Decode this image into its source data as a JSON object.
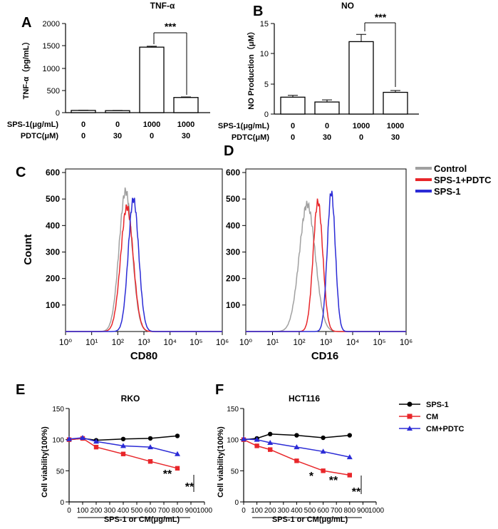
{
  "chart_data": [
    {
      "panel": "A",
      "type": "bar",
      "title": "TNF-α",
      "ylabel": "TNF-α（pg/mL）",
      "ylim": [
        0,
        2000
      ],
      "yticks": [
        "0",
        "500",
        "1000",
        "1500",
        "2000"
      ],
      "values": [
        50,
        45,
        1470,
        340
      ],
      "errors": [
        4,
        5,
        20,
        12
      ],
      "row_labels": [
        "SPS-1(μg/mL)",
        "PDTC(μM)"
      ],
      "rows": [
        [
          "0",
          "0",
          "1000",
          "1000"
        ],
        [
          "0",
          "30",
          "0",
          "30"
        ]
      ],
      "significance": {
        "between": [
          2,
          3
        ],
        "label": "***"
      }
    },
    {
      "panel": "B",
      "type": "bar",
      "title": "NO",
      "ylabel": "NO Production（μM）",
      "ylim": [
        0,
        15
      ],
      "yticks": [
        "0",
        "5",
        "10",
        "15"
      ],
      "values": [
        2.8,
        2.0,
        12.0,
        3.6
      ],
      "errors": [
        0.3,
        0.35,
        1.2,
        0.3
      ],
      "row_labels": [
        "SPS-1(μg/mL)",
        "PDTC(μM)"
      ],
      "rows": [
        [
          "0",
          "0",
          "1000",
          "1000"
        ],
        [
          "0",
          "30",
          "0",
          "30"
        ]
      ],
      "significance": {
        "between": [
          2,
          3
        ],
        "label": "***"
      }
    },
    {
      "panel": "C",
      "type": "line",
      "title": "",
      "xlabel": "CD80",
      "ylabel": "Count",
      "xscale": "log",
      "xticks": [
        "10⁰",
        "10¹",
        "10²",
        "10³",
        "10⁴",
        "10⁵",
        "10⁶"
      ],
      "yticks": [
        "100",
        "200",
        "300",
        "400",
        "500",
        "600"
      ],
      "ylim": [
        0,
        600
      ],
      "series": [
        {
          "name": "Control",
          "color": "#a0a0a0",
          "center": 2.3,
          "width": 0.25,
          "peak": 530
        },
        {
          "name": "SPS-1+PDTC",
          "color": "#e8262a",
          "center": 2.35,
          "width": 0.24,
          "peak": 470
        },
        {
          "name": "SPS-1",
          "color": "#2b2bd6",
          "center": 2.6,
          "width": 0.2,
          "peak": 500
        }
      ]
    },
    {
      "panel": "D",
      "type": "line",
      "title": "",
      "xlabel": "CD16",
      "ylabel": "Count",
      "xscale": "log",
      "xticks": [
        "10⁰",
        "10¹",
        "10²",
        "10³",
        "10⁴",
        "10⁵",
        "10⁶"
      ],
      "yticks": [
        "100",
        "200",
        "300",
        "400",
        "500",
        "600"
      ],
      "ylim": [
        0,
        600
      ],
      "series": [
        {
          "name": "Control",
          "color": "#a0a0a0",
          "center": 2.3,
          "width": 0.3,
          "peak": 480
        },
        {
          "name": "SPS-1+PDTC",
          "color": "#e8262a",
          "center": 2.7,
          "width": 0.18,
          "peak": 490
        },
        {
          "name": "SPS-1",
          "color": "#2b2bd6",
          "center": 3.2,
          "width": 0.15,
          "peak": 525
        }
      ]
    },
    {
      "panel": "E",
      "type": "line",
      "title": "RKO",
      "xlabel": "SPS-1 or CM(μg/mL)",
      "ylabel": "Cell viability(100%)",
      "x": [
        0,
        100,
        200,
        400,
        600,
        800
      ],
      "xlim": [
        0,
        1000
      ],
      "xticks": [
        "0",
        "100",
        "200",
        "300",
        "400",
        "500",
        "600",
        "700",
        "800",
        "900",
        "1000"
      ],
      "ylim": [
        0,
        150
      ],
      "yticks": [
        "0",
        "50",
        "100",
        "150"
      ],
      "series": [
        {
          "name": "SPS-1",
          "color": "#000000",
          "marker": "circle",
          "values": [
            100,
            102,
            99,
            101,
            102,
            106
          ]
        },
        {
          "name": "CM",
          "color": "#e8262a",
          "marker": "square",
          "values": [
            100,
            102,
            88,
            77,
            65,
            54
          ]
        },
        {
          "name": "CM+PDTC",
          "color": "#2b2bd6",
          "marker": "triangle",
          "values": [
            101,
            103,
            97,
            90,
            88,
            77
          ]
        }
      ],
      "annotations": [
        "**",
        "**"
      ]
    },
    {
      "panel": "F",
      "type": "line",
      "title": "HCT116",
      "xlabel": "SPS-1 or CM(μg/mL)",
      "ylabel": "Cell viability(100%)",
      "x": [
        0,
        100,
        200,
        400,
        600,
        800
      ],
      "xlim": [
        0,
        1000
      ],
      "xticks": [
        "0",
        "100",
        "200",
        "300",
        "400",
        "500",
        "600",
        "700",
        "800",
        "900",
        "1000"
      ],
      "ylim": [
        0,
        150
      ],
      "yticks": [
        "0",
        "50",
        "100",
        "150"
      ],
      "series": [
        {
          "name": "SPS-1",
          "color": "#000000",
          "marker": "circle",
          "values": [
            100,
            102,
            109,
            107,
            103,
            107
          ]
        },
        {
          "name": "CM",
          "color": "#e8262a",
          "marker": "square",
          "values": [
            100,
            90,
            84,
            66,
            50,
            43
          ]
        },
        {
          "name": "CM+PDTC",
          "color": "#2b2bd6",
          "marker": "triangle",
          "values": [
            101,
            100,
            95,
            88,
            81,
            72
          ]
        }
      ],
      "annotations": [
        "*",
        "**",
        "**"
      ]
    }
  ],
  "flow_legend": [
    "Control",
    "SPS-1+PDTC",
    "SPS-1"
  ],
  "line_legend": [
    "SPS-1",
    "CM",
    "CM+PDTC"
  ]
}
